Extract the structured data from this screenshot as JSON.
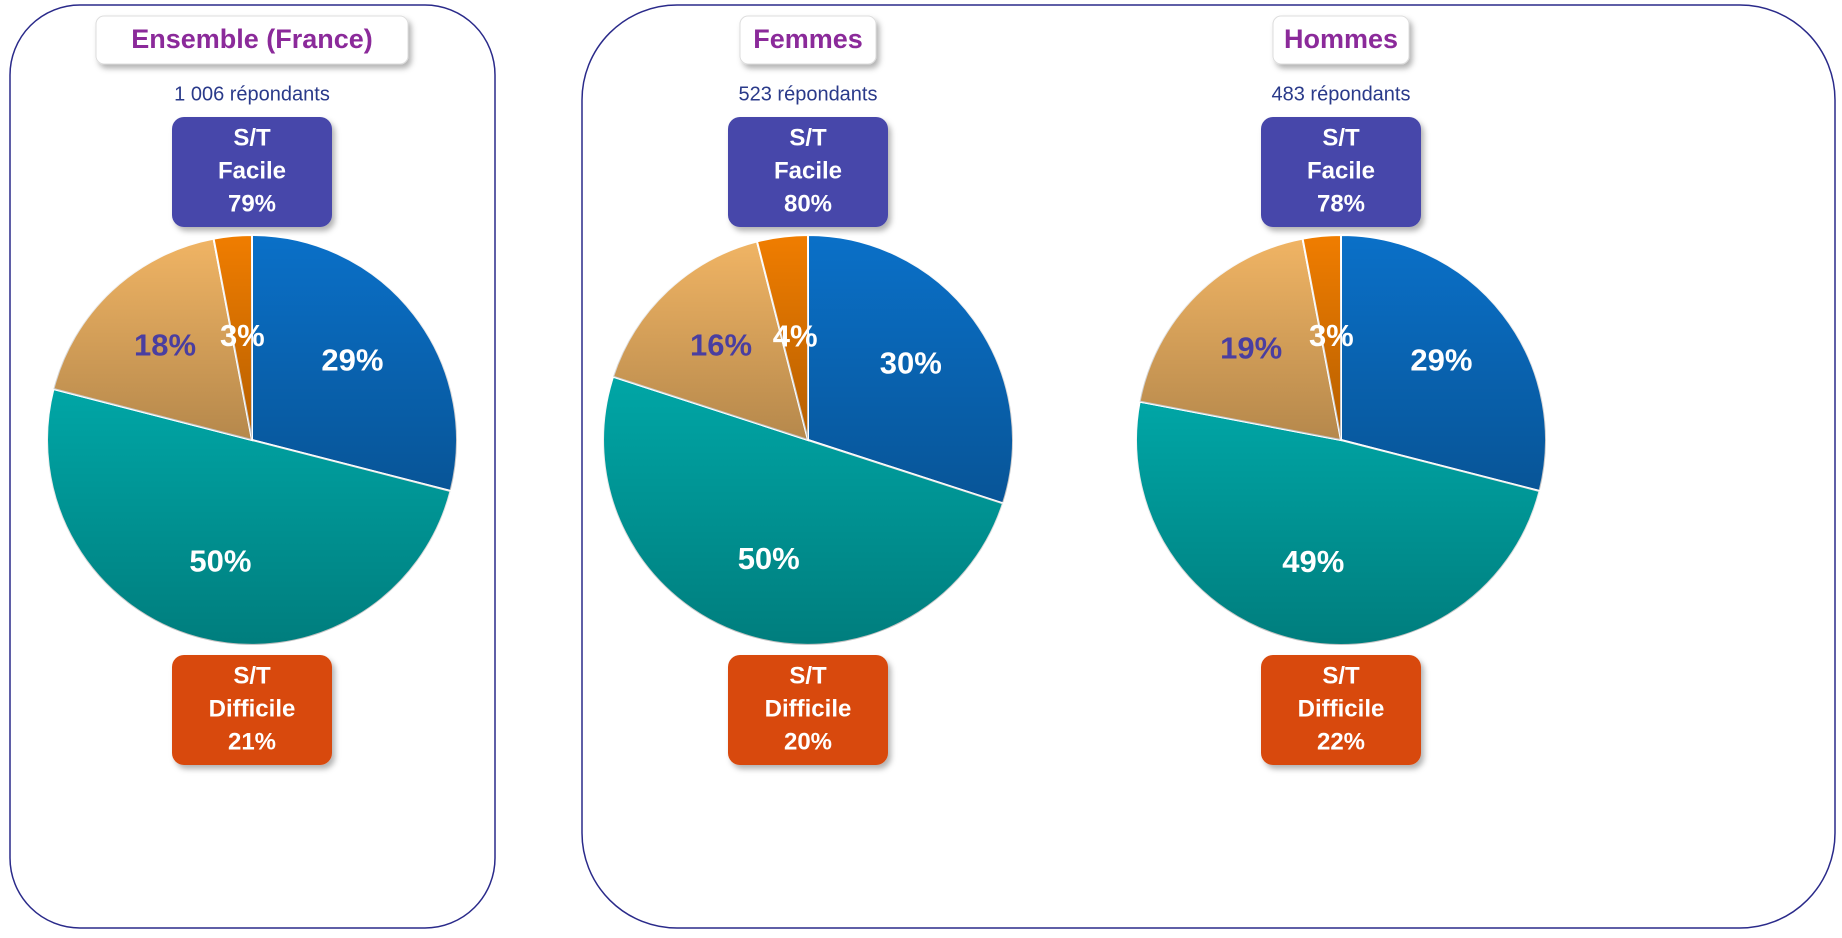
{
  "chart_data": [
    {
      "type": "pie",
      "title": "Ensemble (France)",
      "subtitle": "1 006 répondants",
      "values": [
        29,
        50,
        18,
        3
      ],
      "value_labels": [
        "29%",
        "50%",
        "18%",
        "3%"
      ],
      "colors": [
        "#0a70c8",
        "#00a6a6",
        "#f0b464",
        "#f07d00"
      ],
      "label_colors": [
        "#ffffff",
        "#ffffff",
        "#4a3ea0",
        "#ffffff"
      ],
      "annotations": [
        {
          "lines": [
            "S/T",
            "Facile",
            "79%"
          ],
          "color": "#4646aa"
        },
        {
          "lines": [
            "S/T",
            "Difficile",
            "21%"
          ],
          "color": "#d84a10"
        }
      ]
    },
    {
      "type": "pie",
      "title": "Femmes",
      "subtitle": "523 répondants",
      "values": [
        30,
        50,
        16,
        4
      ],
      "value_labels": [
        "30%",
        "50%",
        "16%",
        "4%"
      ],
      "colors": [
        "#0a70c8",
        "#00a6a6",
        "#f0b464",
        "#f07d00"
      ],
      "label_colors": [
        "#ffffff",
        "#ffffff",
        "#4a3ea0",
        "#ffffff"
      ],
      "annotations": [
        {
          "lines": [
            "S/T",
            "Facile",
            "80%"
          ],
          "color": "#4646aa"
        },
        {
          "lines": [
            "S/T",
            "Difficile",
            "20%"
          ],
          "color": "#d84a10"
        }
      ]
    },
    {
      "type": "pie",
      "title": "Hommes",
      "subtitle": "483 répondants",
      "values": [
        29,
        49,
        19,
        3
      ],
      "value_labels": [
        "29%",
        "49%",
        "19%",
        "3%"
      ],
      "colors": [
        "#0a70c8",
        "#00a6a6",
        "#f0b464",
        "#f07d00"
      ],
      "label_colors": [
        "#ffffff",
        "#ffffff",
        "#4a3ea0",
        "#ffffff"
      ],
      "annotations": [
        {
          "lines": [
            "S/T",
            "Facile",
            "78%"
          ],
          "color": "#4646aa"
        },
        {
          "lines": [
            "S/T",
            "Difficile",
            "22%"
          ],
          "color": "#d84a10"
        }
      ]
    }
  ]
}
